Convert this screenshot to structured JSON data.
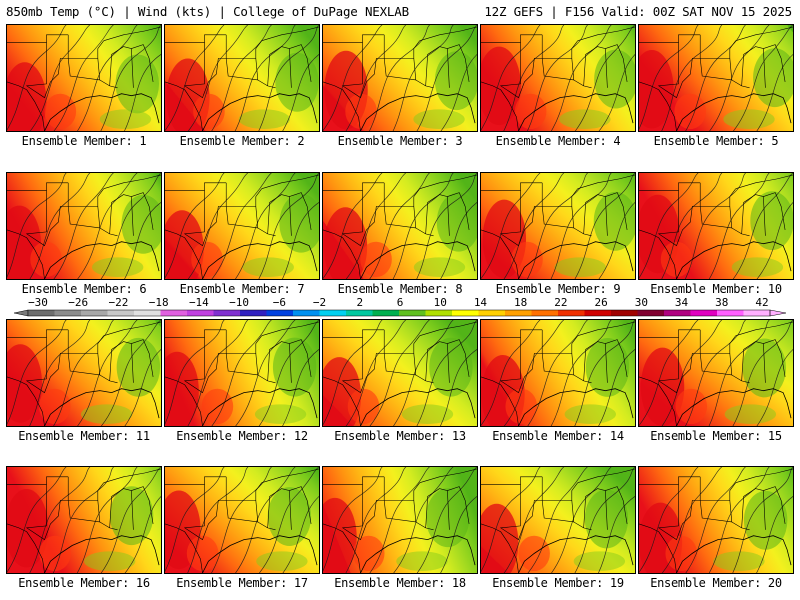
{
  "header": {
    "left": "850mb Temp (°C) | Wind (kts) | College of DuPage NEXLAB",
    "right": "12Z GEFS | F156 Valid: 00Z SAT NOV 15 2025"
  },
  "colorbar": {
    "labels": [
      "−30",
      "−26",
      "−22",
      "−18",
      "−14",
      "−10",
      "−6",
      "−2",
      "2",
      "6",
      "10",
      "14",
      "18",
      "22",
      "26",
      "30",
      "34",
      "38",
      "42"
    ],
    "colors": [
      "#6e6e6e",
      "#8c8c8c",
      "#a8a8a8",
      "#c8c8c8",
      "#e0e0e0",
      "#e060e0",
      "#c040e0",
      "#8030d0",
      "#3020c0",
      "#0040e0",
      "#0090f0",
      "#00d0f0",
      "#00c8a0",
      "#00b050",
      "#60c020",
      "#b0e000",
      "#ffff00",
      "#ffd000",
      "#ffa000",
      "#ff7000",
      "#f03000",
      "#d00000",
      "#a00000",
      "#800030",
      "#b00080",
      "#e000c0",
      "#ff60ff",
      "#ffb0ff"
    ]
  },
  "panels": [
    {
      "caption": "Ensemble Member: 1"
    },
    {
      "caption": "Ensemble Member: 2"
    },
    {
      "caption": "Ensemble Member: 3"
    },
    {
      "caption": "Ensemble Member: 4"
    },
    {
      "caption": "Ensemble Member: 5"
    },
    {
      "caption": "Ensemble Member: 6"
    },
    {
      "caption": "Ensemble Member: 7"
    },
    {
      "caption": "Ensemble Member: 8"
    },
    {
      "caption": "Ensemble Member: 9"
    },
    {
      "caption": "Ensemble Member: 10"
    },
    {
      "caption": "Ensemble Member: 11"
    },
    {
      "caption": "Ensemble Member: 12"
    },
    {
      "caption": "Ensemble Member: 13"
    },
    {
      "caption": "Ensemble Member: 14"
    },
    {
      "caption": "Ensemble Member: 15"
    },
    {
      "caption": "Ensemble Member: 16"
    },
    {
      "caption": "Ensemble Member: 17"
    },
    {
      "caption": "Ensemble Member: 18"
    },
    {
      "caption": "Ensemble Member: 19"
    },
    {
      "caption": "Ensemble Member: 20"
    }
  ]
}
